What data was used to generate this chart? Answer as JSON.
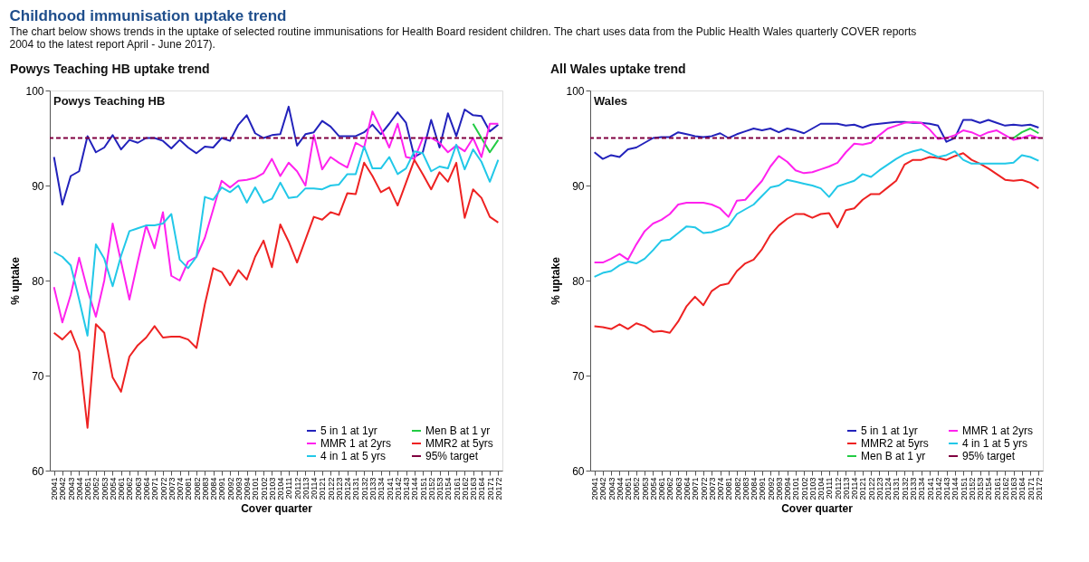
{
  "chart_data": [
    {
      "type": "line",
      "title": "Powys Teaching HB uptake trend",
      "xlabel": "Cover quarter",
      "ylabel": "% uptake",
      "annotations": [
        "Powys Teaching HB",
        "Childhood immunisation uptake trend",
        "The chart below shows trends in the uptake of selected routine immunisations for Health Board resident children. The chart uses data from the Public Health Wales quarterly COVER reports",
        "2004 to the latest report April - June 2017)."
      ],
      "categories": [
        "20041",
        "20042",
        "20043",
        "20044",
        "20051",
        "20052",
        "20053",
        "20054",
        "20061",
        "20062",
        "20063",
        "20064",
        "20071",
        "20072",
        "20073",
        "20074",
        "20081",
        "20082",
        "20083",
        "20084",
        "20091",
        "20092",
        "20093",
        "20094",
        "20101",
        "20102",
        "20103",
        "20104",
        "20111",
        "20112",
        "20113",
        "20114",
        "20121",
        "20122",
        "20123",
        "20124",
        "20131",
        "20132",
        "20133",
        "20134",
        "20141",
        "20142",
        "20143",
        "20144",
        "20151",
        "20152",
        "20153",
        "20154",
        "20161",
        "20162",
        "20163",
        "20164",
        "20171",
        "20172"
      ],
      "ylim": [
        60,
        100
      ],
      "yticks": [
        60,
        70,
        80,
        90,
        100
      ],
      "grid": false,
      "legend": "bottom right",
      "line_style": "solid",
      "marker": "none",
      "series": [
        {
          "name": "5 in 1 at 1yr",
          "color": "#2222bb",
          "values": [
            93,
            88,
            91,
            91.5,
            95.2,
            93.5,
            94,
            95.3,
            93.8,
            94.8,
            94.5,
            95,
            95,
            94.7,
            93.9,
            94.8,
            94,
            93.4,
            94.1,
            94,
            95,
            94.7,
            96.4,
            97.4,
            95.5,
            95,
            95.3,
            95.4,
            98.3,
            94.2,
            95.4,
            95.6,
            96.8,
            96.2,
            95.2,
            95.2,
            95.2,
            95.6,
            96.4,
            95.4,
            96.5,
            97.7,
            96.6,
            93,
            93.5,
            96.9,
            94,
            97.6,
            95.2,
            98,
            97.4,
            97.3,
            95.7,
            96.4
          ]
        },
        {
          "name": "Men B at 1 yr",
          "color": "#22cc44",
          "values": [
            null,
            null,
            null,
            null,
            null,
            null,
            null,
            null,
            null,
            null,
            null,
            null,
            null,
            null,
            null,
            null,
            null,
            null,
            null,
            null,
            null,
            null,
            null,
            null,
            null,
            null,
            null,
            null,
            null,
            null,
            null,
            null,
            null,
            null,
            null,
            null,
            null,
            null,
            null,
            null,
            null,
            null,
            null,
            null,
            null,
            null,
            null,
            null,
            null,
            null,
            96.5,
            95,
            93.5,
            94.8
          ]
        },
        {
          "name": "MMR 1 at 2yrs",
          "color": "#ff22ee",
          "values": [
            79.3,
            75.6,
            78.5,
            82.4,
            79,
            76.2,
            80,
            86,
            82,
            78,
            82,
            85.8,
            83.4,
            87.2,
            80.5,
            80,
            82,
            82.5,
            84.5,
            87.5,
            90.5,
            89.8,
            90.5,
            90.6,
            90.8,
            91.3,
            92.8,
            91,
            92.4,
            91.5,
            90,
            95.3,
            91.7,
            93,
            92.4,
            91.9,
            94.5,
            94,
            97.8,
            96,
            94,
            96.5,
            93,
            92.8,
            95,
            95,
            94.5,
            93.5,
            94.2,
            93.6,
            95,
            93,
            96.5,
            96.5
          ]
        },
        {
          "name": "MMR2 at 5yrs",
          "color": "#ee2222",
          "values": [
            74.5,
            73.8,
            74.7,
            72.5,
            64.5,
            75.4,
            74.5,
            69.8,
            68.3,
            72,
            73.2,
            74,
            75.2,
            74,
            74.1,
            74.1,
            73.8,
            72.9,
            77.5,
            81.3,
            80.9,
            79.5,
            81.1,
            80.1,
            82.5,
            84.2,
            81.4,
            85.9,
            84.1,
            81.9,
            84.3,
            86.7,
            86.4,
            87.2,
            86.9,
            89.2,
            89.1,
            92.4,
            91,
            89.3,
            89.8,
            87.9,
            90.3,
            92.7,
            91.2,
            89.6,
            91.4,
            90.4,
            92.4,
            86.6,
            89.6,
            88.7,
            86.7,
            86.1
          ]
        },
        {
          "name": "4 in 1 at 5 yrs",
          "color": "#22c8e8",
          "values": [
            83,
            82.5,
            81.6,
            78,
            74.2,
            83.8,
            82.3,
            79.4,
            82.6,
            85.2,
            85.5,
            85.8,
            85.8,
            86,
            87,
            82.2,
            81.3,
            82.5,
            88.8,
            88.5,
            89.8,
            89.3,
            90,
            88.2,
            89.8,
            88.2,
            88.6,
            90.3,
            88.7,
            88.8,
            89.7,
            89.7,
            89.6,
            90,
            90.1,
            91.2,
            91.2,
            94.1,
            91.8,
            91.8,
            93,
            91.2,
            91.8,
            93.6,
            93.4,
            91.5,
            92,
            91.8,
            94.3,
            91.7,
            93.8,
            92.5,
            90.4,
            92.7
          ]
        }
      ],
      "ref_lines": [
        {
          "axis": "y",
          "value": 95,
          "label": "95% target",
          "color": "#800040",
          "line_style": "dashed"
        }
      ]
    },
    {
      "type": "line",
      "title": "All Wales uptake trend",
      "xlabel": "Cover quarter",
      "ylabel": "% uptake",
      "annotations": [
        "Wales"
      ],
      "categories": [
        "20041",
        "20042",
        "20043",
        "20044",
        "20051",
        "20052",
        "20053",
        "20054",
        "20061",
        "20062",
        "20063",
        "20064",
        "20071",
        "20072",
        "20073",
        "20074",
        "20081",
        "20082",
        "20083",
        "20084",
        "20091",
        "20092",
        "20093",
        "20094",
        "20101",
        "20102",
        "20103",
        "20104",
        "20111",
        "20112",
        "20113",
        "20114",
        "20121",
        "20122",
        "20123",
        "20124",
        "20131",
        "20132",
        "20133",
        "20134",
        "20141",
        "20142",
        "20143",
        "20144",
        "20151",
        "20152",
        "20153",
        "20154",
        "20161",
        "20162",
        "20163",
        "20164",
        "20171",
        "20172"
      ],
      "ylim": [
        60,
        100
      ],
      "yticks": [
        60,
        70,
        80,
        90,
        100
      ],
      "grid": false,
      "legend": "bottom right",
      "line_style": "solid",
      "marker": "none",
      "series": [
        {
          "name": "5 in 1 at 1yr",
          "color": "#2222bb",
          "values": [
            93.5,
            92.8,
            93.2,
            93,
            93.8,
            94,
            94.5,
            95,
            95.1,
            95.1,
            95.6,
            95.4,
            95.2,
            95.1,
            95.2,
            95.5,
            95,
            95.4,
            95.7,
            96,
            95.8,
            96,
            95.6,
            96,
            95.8,
            95.5,
            96,
            96.5,
            96.5,
            96.5,
            96.3,
            96.4,
            96.1,
            96.4,
            96.5,
            96.6,
            96.7,
            96.7,
            96.6,
            96.6,
            96.5,
            96.3,
            94.6,
            95,
            96.9,
            96.9,
            96.6,
            96.9,
            96.6,
            96.3,
            96.4,
            96.3,
            96.4,
            96.1
          ]
        },
        {
          "name": "MMR 1 at 2yrs",
          "color": "#ff22ee",
          "values": [
            81.9,
            81.9,
            82.3,
            82.8,
            82.2,
            83.8,
            85.2,
            86,
            86.4,
            87,
            88,
            88.2,
            88.2,
            88.2,
            88,
            87.6,
            86.7,
            88.4,
            88.5,
            89.5,
            90.5,
            92,
            93.1,
            92.5,
            91.6,
            91.3,
            91.4,
            91.7,
            92,
            92.4,
            93.5,
            94.4,
            94.3,
            94.5,
            95.3,
            96,
            96.3,
            96.6,
            96.7,
            96.6,
            95.9,
            94.9,
            95,
            95.3,
            95.8,
            95.6,
            95.2,
            95.6,
            95.8,
            95.3,
            94.8,
            95,
            95.3,
            95
          ]
        },
        {
          "name": "MMR2 at 5yrs",
          "color": "#ee2222",
          "values": [
            75.2,
            75.1,
            74.9,
            75.4,
            74.9,
            75.5,
            75.2,
            74.6,
            74.7,
            74.5,
            75.7,
            77.3,
            78.3,
            77.4,
            78.9,
            79.5,
            79.7,
            81,
            81.8,
            82.2,
            83.3,
            84.8,
            85.8,
            86.5,
            87,
            87,
            86.6,
            87,
            87.1,
            85.6,
            87.4,
            87.6,
            88.5,
            89.1,
            89.1,
            89.8,
            90.5,
            92.2,
            92.7,
            92.7,
            93,
            92.9,
            92.7,
            93.1,
            93.4,
            92.7,
            92.3,
            91.8,
            91.2,
            90.6,
            90.5,
            90.6,
            90.3,
            89.7
          ]
        },
        {
          "name": "4 in 1 at 5 yrs",
          "color": "#22c8e8",
          "values": [
            80.4,
            80.8,
            81,
            81.6,
            82,
            81.8,
            82.3,
            83.2,
            84.2,
            84.3,
            85,
            85.7,
            85.6,
            85,
            85.1,
            85.4,
            85.8,
            87,
            87.5,
            88,
            88.9,
            89.8,
            90,
            90.6,
            90.4,
            90.2,
            90,
            89.7,
            88.8,
            89.9,
            90.2,
            90.5,
            91.2,
            90.9,
            91.6,
            92.2,
            92.8,
            93.3,
            93.6,
            93.8,
            93.4,
            93,
            93.2,
            93.6,
            92.7,
            92.3,
            92.3,
            92.3,
            92.3,
            92.3,
            92.4,
            93.2,
            93,
            92.6
          ]
        },
        {
          "name": "Men B at 1 yr",
          "color": "#22cc44",
          "values": [
            null,
            null,
            null,
            null,
            null,
            null,
            null,
            null,
            null,
            null,
            null,
            null,
            null,
            null,
            null,
            null,
            null,
            null,
            null,
            null,
            null,
            null,
            null,
            null,
            null,
            null,
            null,
            null,
            null,
            null,
            null,
            null,
            null,
            null,
            null,
            null,
            null,
            null,
            null,
            null,
            null,
            null,
            null,
            null,
            null,
            null,
            null,
            null,
            null,
            null,
            95,
            95.6,
            96,
            95.5
          ]
        }
      ],
      "ref_lines": [
        {
          "axis": "y",
          "value": 95,
          "label": "95% target",
          "color": "#800040",
          "line_style": "dashed"
        }
      ]
    }
  ]
}
